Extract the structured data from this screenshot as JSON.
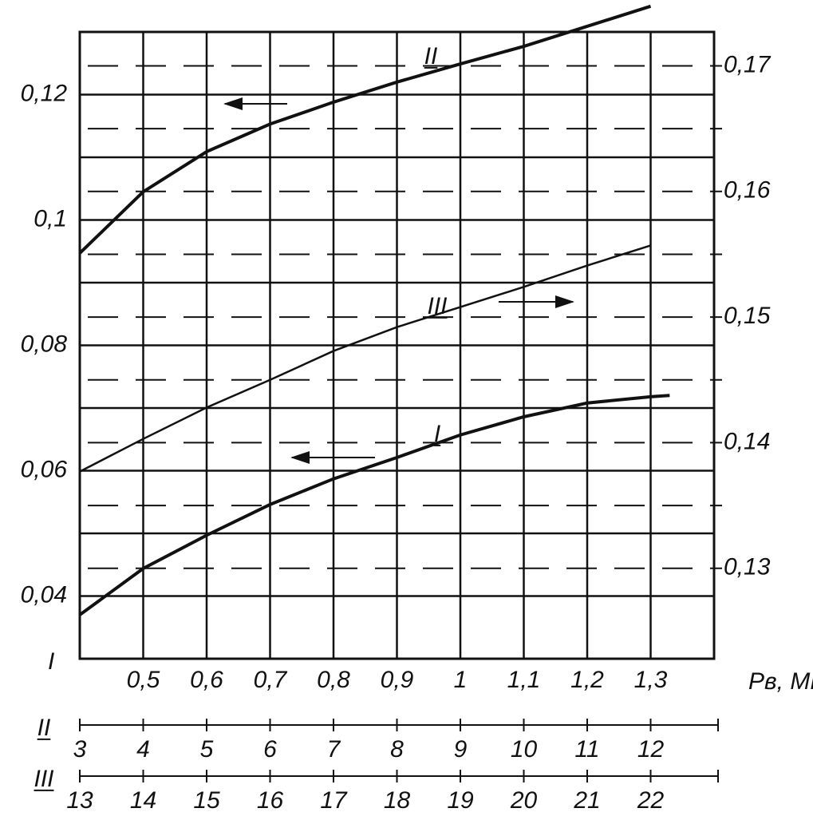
{
  "chart_data": {
    "type": "line",
    "x_label": "Pв, МПа",
    "x_axis_name": "I",
    "xlim": [
      0.4,
      1.4
    ],
    "xticks": [
      {
        "value": 0.5,
        "label": "0,5"
      },
      {
        "value": 0.6,
        "label": "0,6"
      },
      {
        "value": 0.7,
        "label": "0,7"
      },
      {
        "value": 0.8,
        "label": "0,8"
      },
      {
        "value": 0.9,
        "label": "0,9"
      },
      1,
      {
        "value": 1.1,
        "label": "1,1"
      },
      {
        "value": 1.2,
        "label": "1,2"
      },
      {
        "value": 1.3,
        "label": "1,3"
      }
    ],
    "ylim": [
      0.03,
      0.13
    ],
    "yticks": [
      {
        "value": 0.04,
        "label": "0,04"
      },
      {
        "value": 0.06,
        "label": "0,06"
      },
      {
        "value": 0.08,
        "label": "0,08"
      },
      {
        "value": 0.1,
        "label": "0,1"
      },
      {
        "value": 0.12,
        "label": "0,12"
      }
    ],
    "y2lim": [
      0.1228,
      0.1727
    ],
    "y2ticks": [
      {
        "value": 0.13,
        "label": "0,13"
      },
      {
        "value": 0.14,
        "label": "0,14"
      },
      {
        "value": 0.15,
        "label": "0,15"
      },
      {
        "value": 0.16,
        "label": "0,16"
      },
      {
        "value": 0.17,
        "label": "0,17"
      }
    ],
    "series": [
      {
        "name": "I",
        "color": "#111111",
        "x": [
          0.4,
          0.5,
          0.6,
          0.7,
          0.8,
          0.9,
          1.0,
          1.1,
          1.2,
          1.3,
          1.33
        ],
        "values": [
          0.037,
          0.0444,
          0.0497,
          0.0546,
          0.0587,
          0.0621,
          0.0657,
          0.0686,
          0.0708,
          0.0718,
          0.072
        ]
      },
      {
        "name": "II",
        "color": "#111111",
        "x": [
          0.4,
          0.5,
          0.6,
          0.7,
          0.8,
          0.9,
          1.0,
          1.1,
          1.2,
          1.3
        ],
        "values": [
          0.0947,
          0.1045,
          0.1109,
          0.1153,
          0.1188,
          0.122,
          0.1249,
          0.1277,
          0.1309,
          0.1341
        ]
      },
      {
        "name": "III",
        "color": "#111111",
        "axis": "y2",
        "x": [
          0.4,
          0.5,
          0.6,
          0.7,
          0.8,
          0.9,
          1.0,
          1.1,
          1.2,
          1.3
        ],
        "values": [
          0.1377,
          0.1403,
          0.1428,
          0.145,
          0.1473,
          0.1492,
          0.1508,
          0.1524,
          0.1541,
          0.1557
        ]
      }
    ],
    "extra_axes": [
      {
        "name": "II",
        "lim": [
          3,
          13
        ],
        "ticks": [
          3,
          4,
          5,
          6,
          7,
          8,
          9,
          10,
          11,
          12
        ]
      },
      {
        "name": "III",
        "lim": [
          13,
          23
        ],
        "ticks": [
          13,
          14,
          15,
          16,
          17,
          18,
          19,
          20,
          21,
          22
        ]
      }
    ]
  }
}
